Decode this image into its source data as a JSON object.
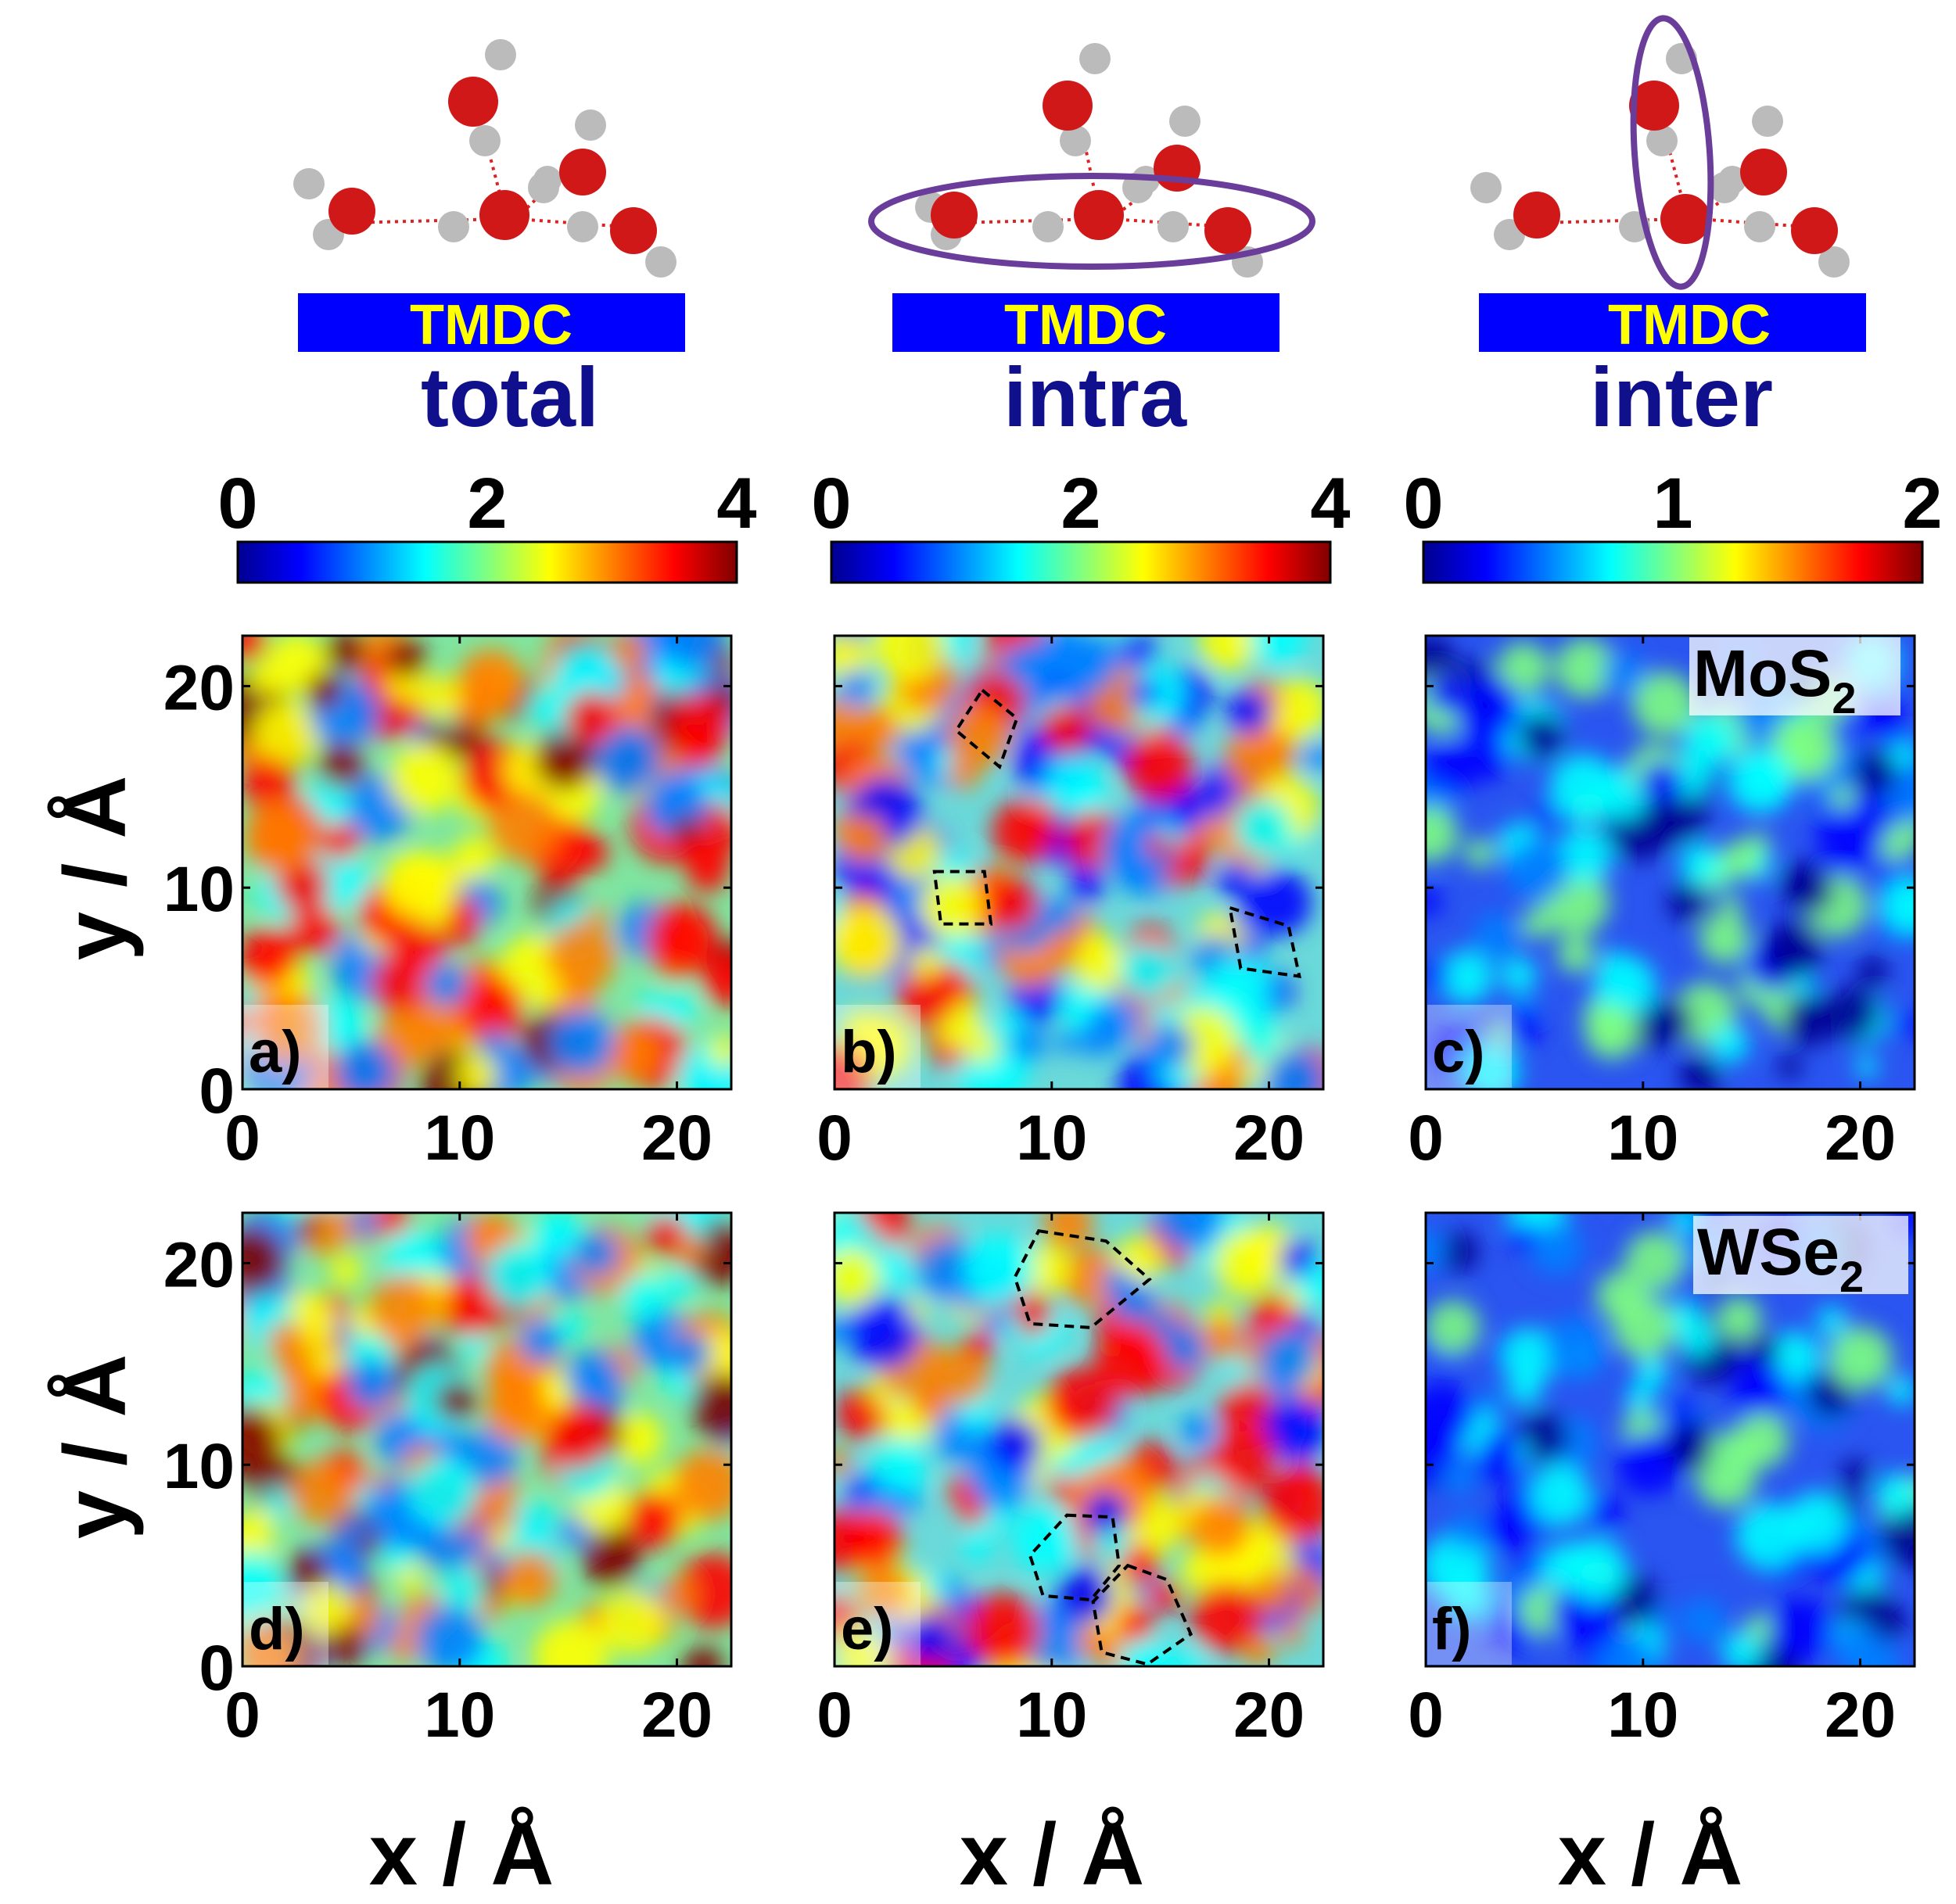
{
  "chart_data": {
    "type": "heatmap",
    "headers": [
      {
        "bar_label": "TMDC",
        "label": "total",
        "highlight": "none"
      },
      {
        "bar_label": "TMDC",
        "label": "intra",
        "highlight": "horizontal-ellipse"
      },
      {
        "bar_label": "TMDC",
        "label": "inter",
        "highlight": "vertical-ellipse"
      }
    ],
    "colorbars": [
      {
        "ticks": [
          "0",
          "2",
          "4"
        ],
        "range": [
          0,
          4
        ]
      },
      {
        "ticks": [
          "0",
          "2",
          "4"
        ],
        "range": [
          0,
          4
        ]
      },
      {
        "ticks": [
          "0",
          "1",
          "2"
        ],
        "range": [
          0,
          2
        ]
      }
    ],
    "colormap": [
      "#00008f",
      "#0000ff",
      "#0080ff",
      "#00ffff",
      "#80ff80",
      "#ffff00",
      "#ff8000",
      "#ff0000",
      "#800000"
    ],
    "xlabel": "x / Å",
    "ylabel": "y / Å",
    "xticks": [
      "0",
      "10",
      "20"
    ],
    "yticks": [
      "0",
      "10",
      "20"
    ],
    "xlim": [
      0,
      22.5
    ],
    "ylim": [
      0,
      22.5
    ],
    "rows": [
      {
        "material": "MoS",
        "material_sub": "2"
      },
      {
        "material": "WSe",
        "material_sub": "2"
      }
    ],
    "panels": [
      {
        "label": "a)",
        "row": 0,
        "col": 0
      },
      {
        "label": "b)",
        "row": 0,
        "col": 1
      },
      {
        "label": "c)",
        "row": 0,
        "col": 2
      },
      {
        "label": "d)",
        "row": 1,
        "col": 0
      },
      {
        "label": "e)",
        "row": 1,
        "col": 1
      },
      {
        "label": "f)",
        "row": 1,
        "col": 2
      }
    ],
    "ring_annotations": {
      "b": [
        [
          [
            6.8,
            19.8
          ],
          [
            8.4,
            18.4
          ],
          [
            7.6,
            16.0
          ],
          [
            5.6,
            17.8
          ]
        ],
        [
          [
            4.6,
            10.8
          ],
          [
            6.9,
            10.8
          ],
          [
            7.2,
            8.2
          ],
          [
            4.9,
            8.2
          ]
        ],
        [
          [
            18.2,
            9.0
          ],
          [
            20.9,
            8.1
          ],
          [
            21.4,
            5.6
          ],
          [
            18.7,
            6.0
          ]
        ]
      ],
      "e": [
        [
          [
            9.4,
            21.6
          ],
          [
            12.5,
            21.1
          ],
          [
            14.5,
            19.2
          ],
          [
            11.8,
            16.8
          ],
          [
            9.0,
            17.0
          ],
          [
            8.3,
            19.3
          ]
        ],
        [
          [
            10.7,
            7.5
          ],
          [
            12.8,
            7.4
          ],
          [
            13.1,
            5.0
          ],
          [
            11.8,
            3.3
          ],
          [
            9.6,
            3.5
          ],
          [
            9.0,
            5.5
          ]
        ],
        [
          [
            13.5,
            5.0
          ],
          [
            15.3,
            4.3
          ],
          [
            16.4,
            1.6
          ],
          [
            14.4,
            0.1
          ],
          [
            12.3,
            0.7
          ],
          [
            11.9,
            3.2
          ]
        ]
      ]
    }
  }
}
